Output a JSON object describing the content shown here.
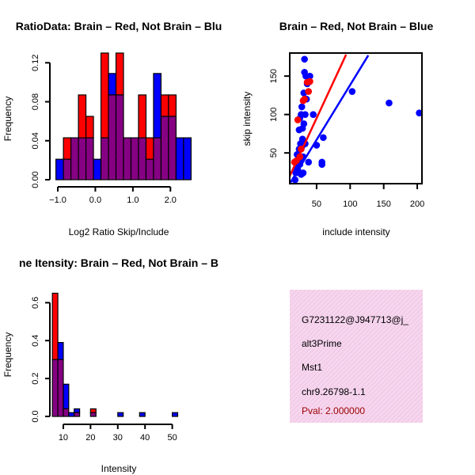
{
  "colors": {
    "red": "#ff0000",
    "blue": "#0000ff",
    "purple": "#800080",
    "hatch": "#a0008f",
    "panel_bg": "#f6d6ee",
    "panel_line": "#eab6dc",
    "pval": "#990000"
  },
  "info_panel": {
    "id_line": "G7231122@J947713@j_",
    "event_type": "alt3Prime",
    "gene": "Mst1",
    "location": "chr9.26798-1.1",
    "pval": "Pval: 2.000000"
  },
  "chart_data": [
    {
      "type": "bar",
      "subtype": "overlaid-histogram",
      "title": "RatioData: Brain – Red, Not Brain – Blu",
      "xlabel": "Log2 Ratio Skip/Include",
      "ylabel": "Frequency",
      "xlim": [
        -1.0,
        2.5
      ],
      "ylim": [
        0,
        0.13
      ],
      "xticks": [
        "−1.0",
        "0.0",
        "1.0",
        "2.0"
      ],
      "xtick_values": [
        -1.0,
        0.0,
        1.0,
        2.0
      ],
      "yticks": [
        "0.00",
        "0.04",
        "0.08",
        "0.12"
      ],
      "ytick_values": [
        0.0,
        0.04,
        0.08,
        0.12
      ],
      "bin_edges": [
        -1.05,
        -0.85,
        -0.65,
        -0.45,
        -0.25,
        -0.05,
        0.15,
        0.35,
        0.55,
        0.75,
        0.95,
        1.15,
        1.35,
        1.55,
        1.75,
        1.95,
        2.15,
        2.35,
        2.55
      ],
      "series": [
        {
          "name": "Brain",
          "color": "red",
          "values": [
            0,
            0.043,
            0.043,
            0.087,
            0.065,
            0,
            0.13,
            0.087,
            0.13,
            0.043,
            0.043,
            0.087,
            0.043,
            0.043,
            0.087,
            0.087,
            0,
            0
          ]
        },
        {
          "name": "Not Brain",
          "color": "blue",
          "values": [
            0.021,
            0.021,
            0.043,
            0.043,
            0.043,
            0.021,
            0.043,
            0.109,
            0.087,
            0.043,
            0.043,
            0.043,
            0.021,
            0.109,
            0.065,
            0.065,
            0.043,
            0.043
          ]
        }
      ]
    },
    {
      "type": "scatter",
      "title": "Brain – Red, Not Brain – Blue",
      "xlabel": "include intensity",
      "ylabel": "skip intensity",
      "xlim": [
        10,
        207
      ],
      "ylim": [
        10,
        180
      ],
      "xticks": [
        "50",
        "100",
        "150",
        "200"
      ],
      "xtick_values": [
        50,
        100,
        150,
        200
      ],
      "yticks": [
        "50",
        "100",
        "150"
      ],
      "ytick_values": [
        50,
        100,
        150
      ],
      "series": [
        {
          "name": "Brain",
          "color": "red",
          "x": [
            17,
            20,
            22,
            25,
            27,
            30,
            32,
            36,
            38,
            40
          ],
          "y": [
            38,
            40,
            93,
            45,
            55,
            118,
            120,
            142,
            130,
            143
          ]
        },
        {
          "name": "Not Brain",
          "color": "blue",
          "x": [
            18,
            19,
            20,
            21,
            22,
            23,
            24,
            24,
            25,
            25,
            26,
            26,
            27,
            27,
            28,
            28,
            29,
            29,
            30,
            30,
            31,
            31,
            32,
            32,
            33,
            33,
            34,
            35,
            36,
            38,
            40,
            45,
            50,
            58,
            58,
            60,
            103,
            158,
            203
          ],
          "y": [
            15,
            24,
            30,
            48,
            28,
            38,
            55,
            80,
            35,
            95,
            42,
            62,
            22,
            100,
            58,
            110,
            68,
            82,
            24,
            45,
            88,
            128,
            155,
            172,
            62,
            100,
            150,
            120,
            140,
            38,
            150,
            100,
            60,
            35,
            38,
            70,
            130,
            115,
            102
          ]
        }
      ],
      "lines": [
        {
          "name": "Brain fit",
          "color": "red",
          "x": [
            10,
            94
          ],
          "y": [
            20,
            178
          ]
        },
        {
          "name": "Not Brain fit",
          "color": "blue",
          "x": [
            10,
            127
          ],
          "y": [
            10,
            177
          ]
        }
      ]
    },
    {
      "type": "bar",
      "subtype": "overlaid-histogram",
      "title": "ne Itensity: Brain – Red, Not Brain – B",
      "xlabel": "Intensity",
      "ylabel": "Frequency",
      "xlim": [
        4,
        55
      ],
      "ylim": [
        0,
        0.66
      ],
      "xticks": [
        "10",
        "20",
        "30",
        "40",
        "50"
      ],
      "xtick_values": [
        10,
        20,
        30,
        40,
        50
      ],
      "yticks": [
        "0.0",
        "0.2",
        "0.4",
        "0.6"
      ],
      "ytick_values": [
        0.0,
        0.2,
        0.4,
        0.6
      ],
      "bin_edges": [
        6,
        8,
        10,
        12,
        14,
        16,
        18,
        20,
        22,
        24,
        26,
        28,
        30,
        32,
        34,
        36,
        38,
        40,
        42,
        44,
        46,
        48,
        50,
        52,
        54
      ],
      "series": [
        {
          "name": "Brain",
          "color": "red",
          "values": [
            0.65,
            0.3,
            0.04,
            0,
            0.02,
            0,
            0,
            0.04,
            0,
            0,
            0,
            0,
            0,
            0,
            0,
            0,
            0,
            0,
            0,
            0,
            0,
            0,
            0,
            0
          ]
        },
        {
          "name": "Not Brain",
          "color": "blue",
          "values": [
            0.3,
            0.39,
            0.17,
            0.02,
            0.04,
            0,
            0,
            0.02,
            0,
            0,
            0,
            0,
            0.02,
            0,
            0,
            0,
            0.02,
            0,
            0,
            0,
            0,
            0,
            0.02,
            0
          ]
        }
      ]
    }
  ]
}
